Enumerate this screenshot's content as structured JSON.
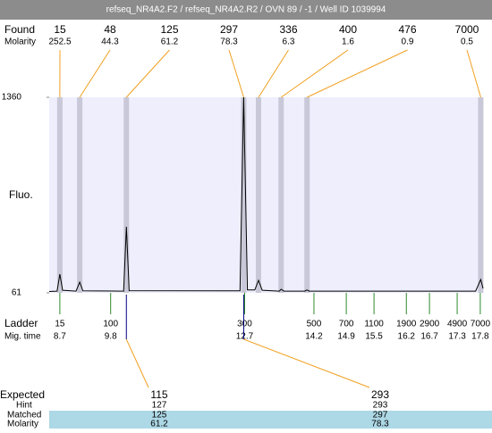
{
  "title": "refseq_NR4A2.F2 / refseq_NR4A2.R2 / OVN 89 / -1 / Well ID 1039994",
  "labels": {
    "found": "Found",
    "found_molarity": "Molarity",
    "fluo": "Fluo.",
    "ladder": "Ladder",
    "mig_time": "Mig. time",
    "expected": "Expected",
    "hint": "Hint",
    "matched": "Matched",
    "molarity": "Molarity"
  },
  "chart_data": {
    "type": "line",
    "xlim": [
      8.47,
      17.86
    ],
    "ylim": [
      61,
      1360
    ],
    "yticks": [
      61,
      1360
    ],
    "x": [
      8.47,
      8.64,
      8.7,
      8.76,
      9.05,
      9.13,
      9.2,
      10.08,
      10.14,
      10.2,
      12.6,
      12.68,
      12.76,
      12.92,
      13.0,
      13.08,
      13.45,
      13.49,
      13.55,
      14.0,
      14.05,
      14.1,
      17.7,
      17.81,
      17.86
    ],
    "series": [
      {
        "color": "#000000",
        "values": [
          70,
          72,
          185,
          78,
          72,
          132,
          74,
          72,
          500,
          75,
          74,
          1360,
          80,
          80,
          144,
          78,
          72,
          85,
          72,
          72,
          80,
          72,
          72,
          150,
          90
        ]
      }
    ],
    "found": [
      {
        "size": 15,
        "molarity": 252.5,
        "time": 8.7
      },
      {
        "size": 48,
        "molarity": 44.3,
        "time": 9.13
      },
      {
        "size": 125,
        "molarity": 61.2,
        "time": 10.14
      },
      {
        "size": 297,
        "molarity": 78.3,
        "time": 12.68
      },
      {
        "size": 336,
        "molarity": 6.3,
        "time": 13.0
      },
      {
        "size": 400,
        "molarity": 1.6,
        "time": 13.49
      },
      {
        "size": 476,
        "molarity": 0.9,
        "time": 14.05
      },
      {
        "size": 7000,
        "molarity": 0.5,
        "time": 17.81
      }
    ],
    "ladder": [
      {
        "size": 15,
        "time": 8.7
      },
      {
        "size": 100,
        "time": 9.8
      },
      {
        "size": 300,
        "time": 12.7
      },
      {
        "size": 500,
        "time": 14.2
      },
      {
        "size": 700,
        "time": 14.9
      },
      {
        "size": 1100,
        "time": 15.5
      },
      {
        "size": 1900,
        "time": 16.2
      },
      {
        "size": 2900,
        "time": 16.7
      },
      {
        "size": 4900,
        "time": 17.3
      },
      {
        "size": 7000,
        "time": 17.8
      }
    ],
    "expected": [
      {
        "expected": 115,
        "hint": 127,
        "matched": 125,
        "molarity": 61.2
      },
      {
        "expected": 293,
        "hint": 293,
        "matched": 297,
        "molarity": 78.3
      }
    ]
  }
}
